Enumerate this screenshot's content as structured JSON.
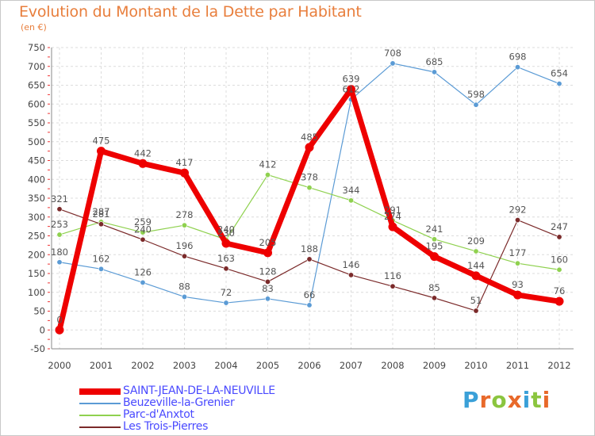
{
  "header": {
    "title": "Evolution du Montant de la Dette par Habitant",
    "subtitle": "(en €)"
  },
  "logo": {
    "letters": [
      "P",
      "r",
      "o",
      "x",
      "i",
      "t",
      "i"
    ],
    "colors": [
      "#3aa0d8",
      "#e8692a",
      "#8bc53f",
      "#e8692a",
      "#3aa0d8",
      "#8bc53f",
      "#e8692a"
    ]
  },
  "chart_data": {
    "type": "line",
    "title": "Evolution du Montant de la Dette par Habitant",
    "ylabel": "(en €)",
    "ylim": [
      -50,
      750
    ],
    "yticks": [
      -50,
      0,
      50,
      100,
      150,
      200,
      250,
      300,
      350,
      400,
      450,
      500,
      550,
      600,
      650,
      700,
      750
    ],
    "x": [
      2000,
      2001,
      2002,
      2003,
      2004,
      2005,
      2006,
      2007,
      2008,
      2009,
      2010,
      2011,
      2012
    ],
    "grid": true,
    "legend_position": "bottom-left",
    "series": [
      {
        "name": "SAINT-JEAN-DE-LA-NEUVILLE",
        "color": "#ee0000",
        "values": [
          0,
          475,
          442,
          417,
          230,
          205,
          485,
          639,
          274,
          195,
          144,
          93,
          76
        ],
        "labels": [
          "0",
          "475",
          "442",
          "417",
          "230",
          "205",
          "485",
          "639",
          "274",
          "195",
          "144",
          "93",
          "76"
        ]
      },
      {
        "name": "Beuzeville-la-Grenier",
        "color": "#5b9bd5",
        "values": [
          180,
          162,
          126,
          88,
          72,
          83,
          66,
          612,
          708,
          685,
          598,
          698,
          654
        ],
        "labels": [
          "180",
          "162",
          "126",
          "88",
          "72",
          "83",
          "66",
          "612",
          "708",
          "685",
          "598",
          "698",
          "654"
        ]
      },
      {
        "name": "Parc-d'Anxtot",
        "color": "#8fd14f",
        "values": [
          253,
          287,
          259,
          278,
          240,
          412,
          378,
          344,
          291,
          241,
          209,
          177,
          160
        ],
        "labels": [
          "253",
          "287",
          "259",
          "278",
          "240",
          "412",
          "378",
          "344",
          "291",
          "241",
          "209",
          "177",
          "160"
        ]
      },
      {
        "name": "Les Trois-Pierres",
        "color": "#7b2a2a",
        "values": [
          321,
          281,
          240,
          196,
          163,
          128,
          188,
          146,
          116,
          85,
          51,
          292,
          247
        ],
        "labels": [
          "321",
          "281",
          "240",
          "196",
          "163",
          "128",
          "188",
          "146",
          "116",
          "85",
          "51",
          "292",
          "247"
        ]
      }
    ]
  }
}
